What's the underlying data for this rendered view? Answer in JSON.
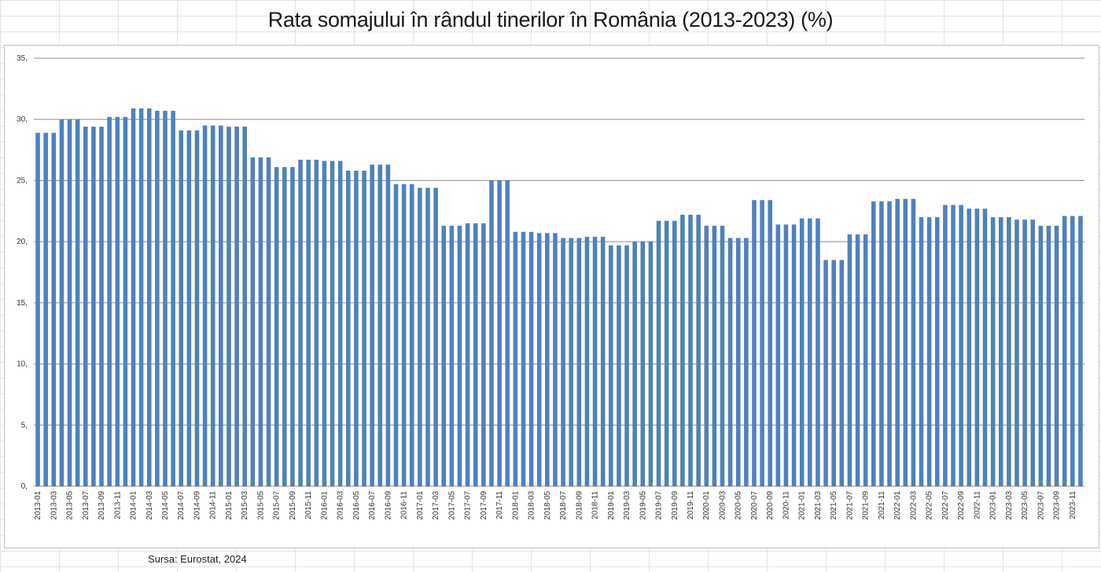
{
  "title": "Rata somajului în rândul tinerilor în România (2013-2023) (%)",
  "source": "Sursa: Eurostat, 2024",
  "colors": {
    "bar": "#4f81bd",
    "grid": "#8c8c8c"
  },
  "chart_data": {
    "type": "bar",
    "title": "Rata somajului în rândul tinerilor în România (2013-2023) (%)",
    "xlabel": "",
    "ylabel": "",
    "ylim": [
      0,
      35
    ],
    "y_ticks": [
      "0,",
      "5,",
      "10,",
      "15,",
      "20,",
      "25,",
      "30,",
      "35,"
    ],
    "grid": true,
    "legend": "none",
    "categories": [
      "2013-01",
      "2013-02",
      "2013-03",
      "2013-04",
      "2013-05",
      "2013-06",
      "2013-07",
      "2013-08",
      "2013-09",
      "2013-10",
      "2013-11",
      "2013-12",
      "2014-01",
      "2014-02",
      "2014-03",
      "2014-04",
      "2014-05",
      "2014-06",
      "2014-07",
      "2014-08",
      "2014-09",
      "2014-10",
      "2014-11",
      "2014-12",
      "2015-01",
      "2015-02",
      "2015-03",
      "2015-04",
      "2015-05",
      "2015-06",
      "2015-07",
      "2015-08",
      "2015-09",
      "2015-10",
      "2015-11",
      "2015-12",
      "2016-01",
      "2016-02",
      "2016-03",
      "2016-04",
      "2016-05",
      "2016-06",
      "2016-07",
      "2016-08",
      "2016-09",
      "2016-10",
      "2016-11",
      "2016-12",
      "2017-01",
      "2017-02",
      "2017-03",
      "2017-04",
      "2017-05",
      "2017-06",
      "2017-07",
      "2017-08",
      "2017-09",
      "2017-10",
      "2017-11",
      "2017-12",
      "2018-01",
      "2018-02",
      "2018-03",
      "2018-04",
      "2018-05",
      "2018-06",
      "2018-07",
      "2018-08",
      "2018-09",
      "2018-10",
      "2018-11",
      "2018-12",
      "2019-01",
      "2019-02",
      "2019-03",
      "2019-04",
      "2019-05",
      "2019-06",
      "2019-07",
      "2019-08",
      "2019-09",
      "2019-10",
      "2019-11",
      "2019-12",
      "2020-01",
      "2020-02",
      "2020-03",
      "2020-04",
      "2020-05",
      "2020-06",
      "2020-07",
      "2020-08",
      "2020-09",
      "2020-10",
      "2020-11",
      "2020-12",
      "2021-01",
      "2021-02",
      "2021-03",
      "2021-04",
      "2021-05",
      "2021-06",
      "2021-07",
      "2021-08",
      "2021-09",
      "2021-10",
      "2021-11",
      "2021-12",
      "2022-01",
      "2022-02",
      "2022-03",
      "2022-04",
      "2022-05",
      "2022-06",
      "2022-07",
      "2022-08",
      "2022-09",
      "2022-10",
      "2022-11",
      "2022-12",
      "2023-01",
      "2023-02",
      "2023-03",
      "2023-04",
      "2023-05",
      "2023-06",
      "2023-07",
      "2023-08",
      "2023-09",
      "2023-10",
      "2023-11",
      "2023-12"
    ],
    "x_tick_labels": [
      "2013-01",
      "2013-03",
      "2013-05",
      "2013-07",
      "2013-09",
      "2013-11",
      "2014-01",
      "2014-03",
      "2014-05",
      "2014-07",
      "2014-09",
      "2014-11",
      "2015-01",
      "2015-03",
      "2015-05",
      "2015-07",
      "2015-09",
      "2015-11",
      "2016-01",
      "2016-03",
      "2016-05",
      "2016-07",
      "2016-09",
      "2016-11",
      "2017-01",
      "2017-03",
      "2017-05",
      "2017-07",
      "2017-09",
      "2017-11",
      "2018-01",
      "2018-03",
      "2018-05",
      "2018-07",
      "2018-09",
      "2018-11",
      "2019-01",
      "2019-03",
      "2019-05",
      "2019-07",
      "2019-09",
      "2019-11",
      "2020-01",
      "2020-03",
      "2020-05",
      "2020-07",
      "2020-09",
      "2020-11",
      "2021-01",
      "2021-03",
      "2021-05",
      "2021-07",
      "2021-09",
      "2021-11",
      "2022-01",
      "2022-03",
      "2022-05",
      "2022-07",
      "2022-09",
      "2022-11",
      "2023-01",
      "2023-03",
      "2023-05",
      "2023-07",
      "2023-09",
      "2023-11"
    ],
    "values": [
      28.9,
      28.9,
      28.9,
      30.0,
      30.0,
      30.0,
      29.4,
      29.4,
      29.4,
      30.2,
      30.2,
      30.2,
      30.9,
      30.9,
      30.9,
      30.7,
      30.7,
      30.7,
      29.1,
      29.1,
      29.1,
      29.5,
      29.5,
      29.5,
      29.4,
      29.4,
      29.4,
      26.9,
      26.9,
      26.9,
      26.1,
      26.1,
      26.1,
      26.7,
      26.7,
      26.7,
      26.6,
      26.6,
      26.6,
      25.8,
      25.8,
      25.8,
      26.3,
      26.3,
      26.3,
      24.7,
      24.7,
      24.7,
      24.4,
      24.4,
      24.4,
      21.3,
      21.3,
      21.3,
      21.5,
      21.5,
      21.5,
      25.0,
      25.0,
      25.0,
      20.8,
      20.8,
      20.8,
      20.7,
      20.7,
      20.7,
      20.3,
      20.3,
      20.3,
      20.4,
      20.4,
      20.4,
      19.7,
      19.7,
      19.7,
      20.0,
      20.0,
      20.0,
      21.7,
      21.7,
      21.7,
      22.2,
      22.2,
      22.2,
      21.3,
      21.3,
      21.3,
      20.3,
      20.3,
      20.3,
      23.4,
      23.4,
      23.4,
      21.4,
      21.4,
      21.4,
      21.9,
      21.9,
      21.9,
      18.5,
      18.5,
      18.5,
      20.6,
      20.6,
      20.6,
      23.3,
      23.3,
      23.3,
      23.5,
      23.5,
      23.5,
      22.0,
      22.0,
      22.0,
      23.0,
      23.0,
      23.0,
      22.7,
      22.7,
      22.7,
      22.0,
      22.0,
      22.0,
      21.8,
      21.8,
      21.8,
      21.3,
      21.3,
      21.3,
      22.1,
      22.1,
      22.1
    ]
  }
}
